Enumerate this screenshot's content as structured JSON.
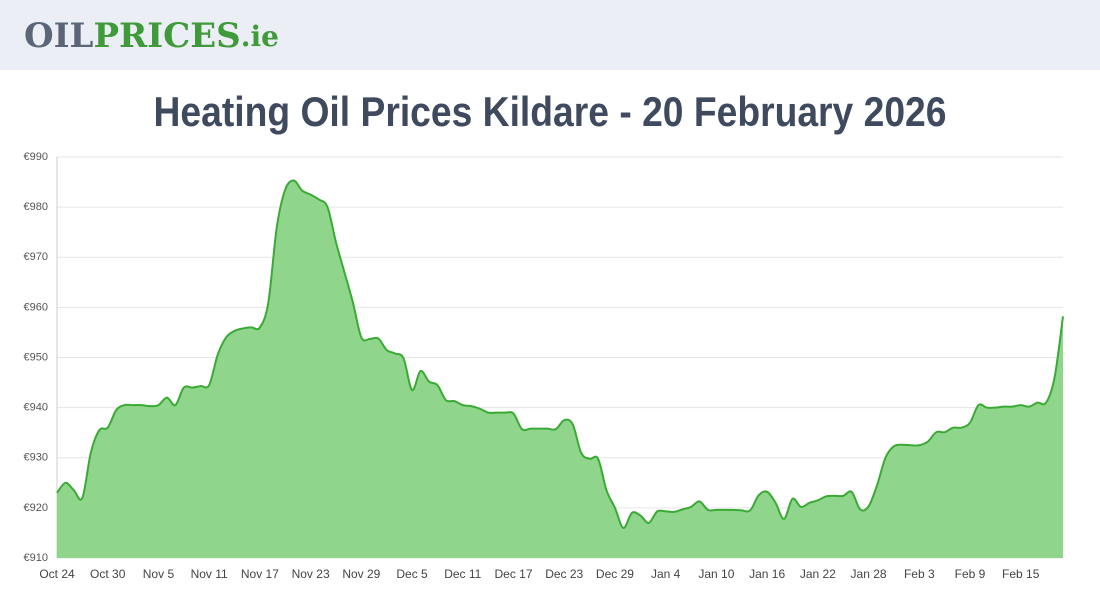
{
  "header": {
    "logo": {
      "part1": "OIL",
      "part2": "PRICES",
      "part3": ".ie"
    }
  },
  "chart_data": {
    "type": "area",
    "title": "Heating Oil Prices Kildare - 20 February 2026",
    "categories": [
      "Oct 24",
      null,
      null,
      null,
      null,
      null,
      "Oct 30",
      null,
      null,
      null,
      null,
      null,
      "Nov 5",
      null,
      null,
      null,
      null,
      null,
      "Nov 11",
      null,
      null,
      null,
      null,
      null,
      "Nov 17",
      null,
      null,
      null,
      null,
      null,
      "Nov 23",
      null,
      null,
      null,
      null,
      null,
      "Nov 29",
      null,
      null,
      null,
      null,
      null,
      "Dec 5",
      null,
      null,
      null,
      null,
      null,
      "Dec 11",
      null,
      null,
      null,
      null,
      null,
      "Dec 17",
      null,
      null,
      null,
      null,
      null,
      "Dec 23",
      null,
      null,
      null,
      null,
      null,
      "Dec 29",
      null,
      null,
      null,
      null,
      null,
      "Jan 4",
      null,
      null,
      null,
      null,
      null,
      "Jan 10",
      null,
      null,
      null,
      null,
      null,
      "Jan 16",
      null,
      null,
      null,
      null,
      null,
      "Jan 22",
      null,
      null,
      null,
      null,
      null,
      "Jan 28",
      null,
      null,
      null,
      null,
      null,
      "Feb 3",
      null,
      null,
      null,
      null,
      null,
      "Feb 9",
      null,
      null,
      null,
      null,
      null,
      "Feb 15",
      null,
      null,
      null,
      null,
      null
    ],
    "values": [
      923,
      925,
      923.5,
      922,
      931,
      935.5,
      936,
      939.5,
      940.5,
      940.5,
      940.5,
      940.3,
      940.5,
      942,
      940.5,
      944,
      944,
      944.3,
      944.5,
      950.5,
      954,
      955.3,
      955.8,
      956,
      956,
      961,
      976,
      983.5,
      985.3,
      983.3,
      982.5,
      981.5,
      980,
      973,
      967,
      961,
      954,
      953.7,
      953.8,
      951.5,
      950.8,
      949.8,
      943.5,
      947.3,
      945.2,
      944.5,
      941.5,
      941.3,
      940.5,
      940.3,
      939.8,
      939,
      939,
      939,
      938.8,
      935.7,
      935.8,
      935.8,
      935.8,
      935.7,
      937.5,
      936.7,
      931,
      929.8,
      929.8,
      923.5,
      920,
      916,
      919,
      918.5,
      917,
      919.3,
      919.3,
      919.2,
      919.7,
      920.2,
      921.3,
      919.6,
      919.6,
      919.6,
      919.6,
      919.5,
      919.5,
      922.5,
      923.2,
      921,
      917.8,
      921.8,
      920.2,
      921,
      921.5,
      922.3,
      922.4,
      922.4,
      923.2,
      919.7,
      920.3,
      924.5,
      930,
      932.3,
      932.6,
      932.5,
      932.5,
      933.2,
      935.1,
      935.1,
      936,
      936,
      937,
      940.5,
      940,
      940,
      940.2,
      940.2,
      940.5,
      940.2,
      941,
      941,
      946,
      958.2
    ],
    "color": "#3aaa35",
    "fill": "#8fd68c",
    "ylim": [
      910,
      990
    ],
    "yticks": [
      {
        "value": 910,
        "label": "€910"
      },
      {
        "value": 920,
        "label": "€920"
      },
      {
        "value": 930,
        "label": "€930"
      },
      {
        "value": 940,
        "label": "€940"
      },
      {
        "value": 950,
        "label": "€950"
      },
      {
        "value": 960,
        "label": "€960"
      },
      {
        "value": 970,
        "label": "€970"
      },
      {
        "value": 980,
        "label": "€980"
      },
      {
        "value": 990,
        "label": "€990"
      }
    ],
    "grid": true
  }
}
